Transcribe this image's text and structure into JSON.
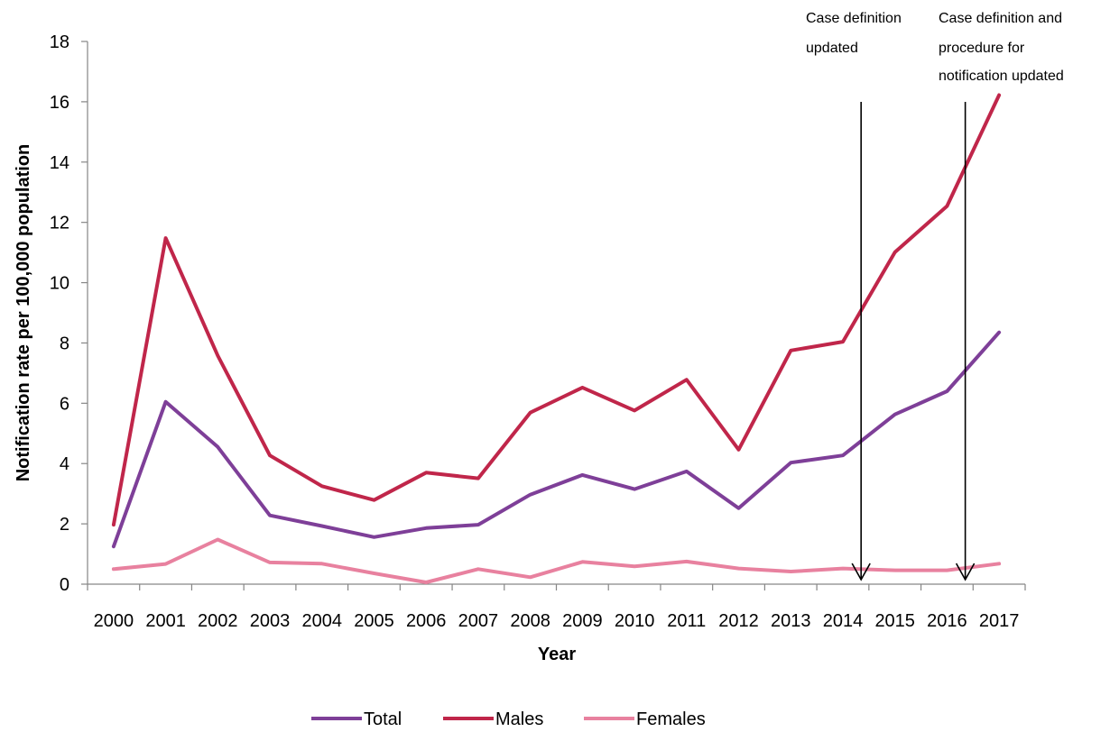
{
  "chart_data": {
    "type": "line",
    "title": "",
    "xlabel": "Year",
    "ylabel": "Notification rate per 100,000 population",
    "categories": [
      "2000",
      "2001",
      "2002",
      "2003",
      "2004",
      "2005",
      "2006",
      "2007",
      "2008",
      "2009",
      "2010",
      "2011",
      "2012",
      "2013",
      "2014",
      "2015",
      "2016",
      "2017"
    ],
    "ylim": [
      0,
      18
    ],
    "yticks": [
      "0",
      "2",
      "4",
      "6",
      "8",
      "10",
      "12",
      "14",
      "16",
      "18"
    ],
    "grid": false,
    "legend": "bottom",
    "series": [
      {
        "name": "Total",
        "color": "#7e3f98",
        "values": [
          1.25,
          6.05,
          4.55,
          2.28,
          1.93,
          1.56,
          1.86,
          1.97,
          2.97,
          3.62,
          3.15,
          3.74,
          2.52,
          4.03,
          4.27,
          5.63,
          6.4,
          8.35
        ]
      },
      {
        "name": "Males",
        "color": "#c0264a",
        "values": [
          1.97,
          11.48,
          7.58,
          4.27,
          3.25,
          2.79,
          3.7,
          3.51,
          5.69,
          6.52,
          5.76,
          6.78,
          4.46,
          7.75,
          8.04,
          11.01,
          12.54,
          16.22
        ]
      },
      {
        "name": "Females",
        "color": "#e8819f",
        "values": [
          0.5,
          0.67,
          1.48,
          0.72,
          0.68,
          0.36,
          0.06,
          0.5,
          0.23,
          0.74,
          0.59,
          0.75,
          0.52,
          0.42,
          0.52,
          0.46,
          0.46,
          0.68
        ]
      }
    ],
    "annotations": [
      {
        "text": [
          "Case definition",
          "updated"
        ],
        "x": 2014
      },
      {
        "text": [
          "Case definition and",
          "procedure for",
          "notification updated"
        ],
        "x": 2016
      }
    ]
  }
}
